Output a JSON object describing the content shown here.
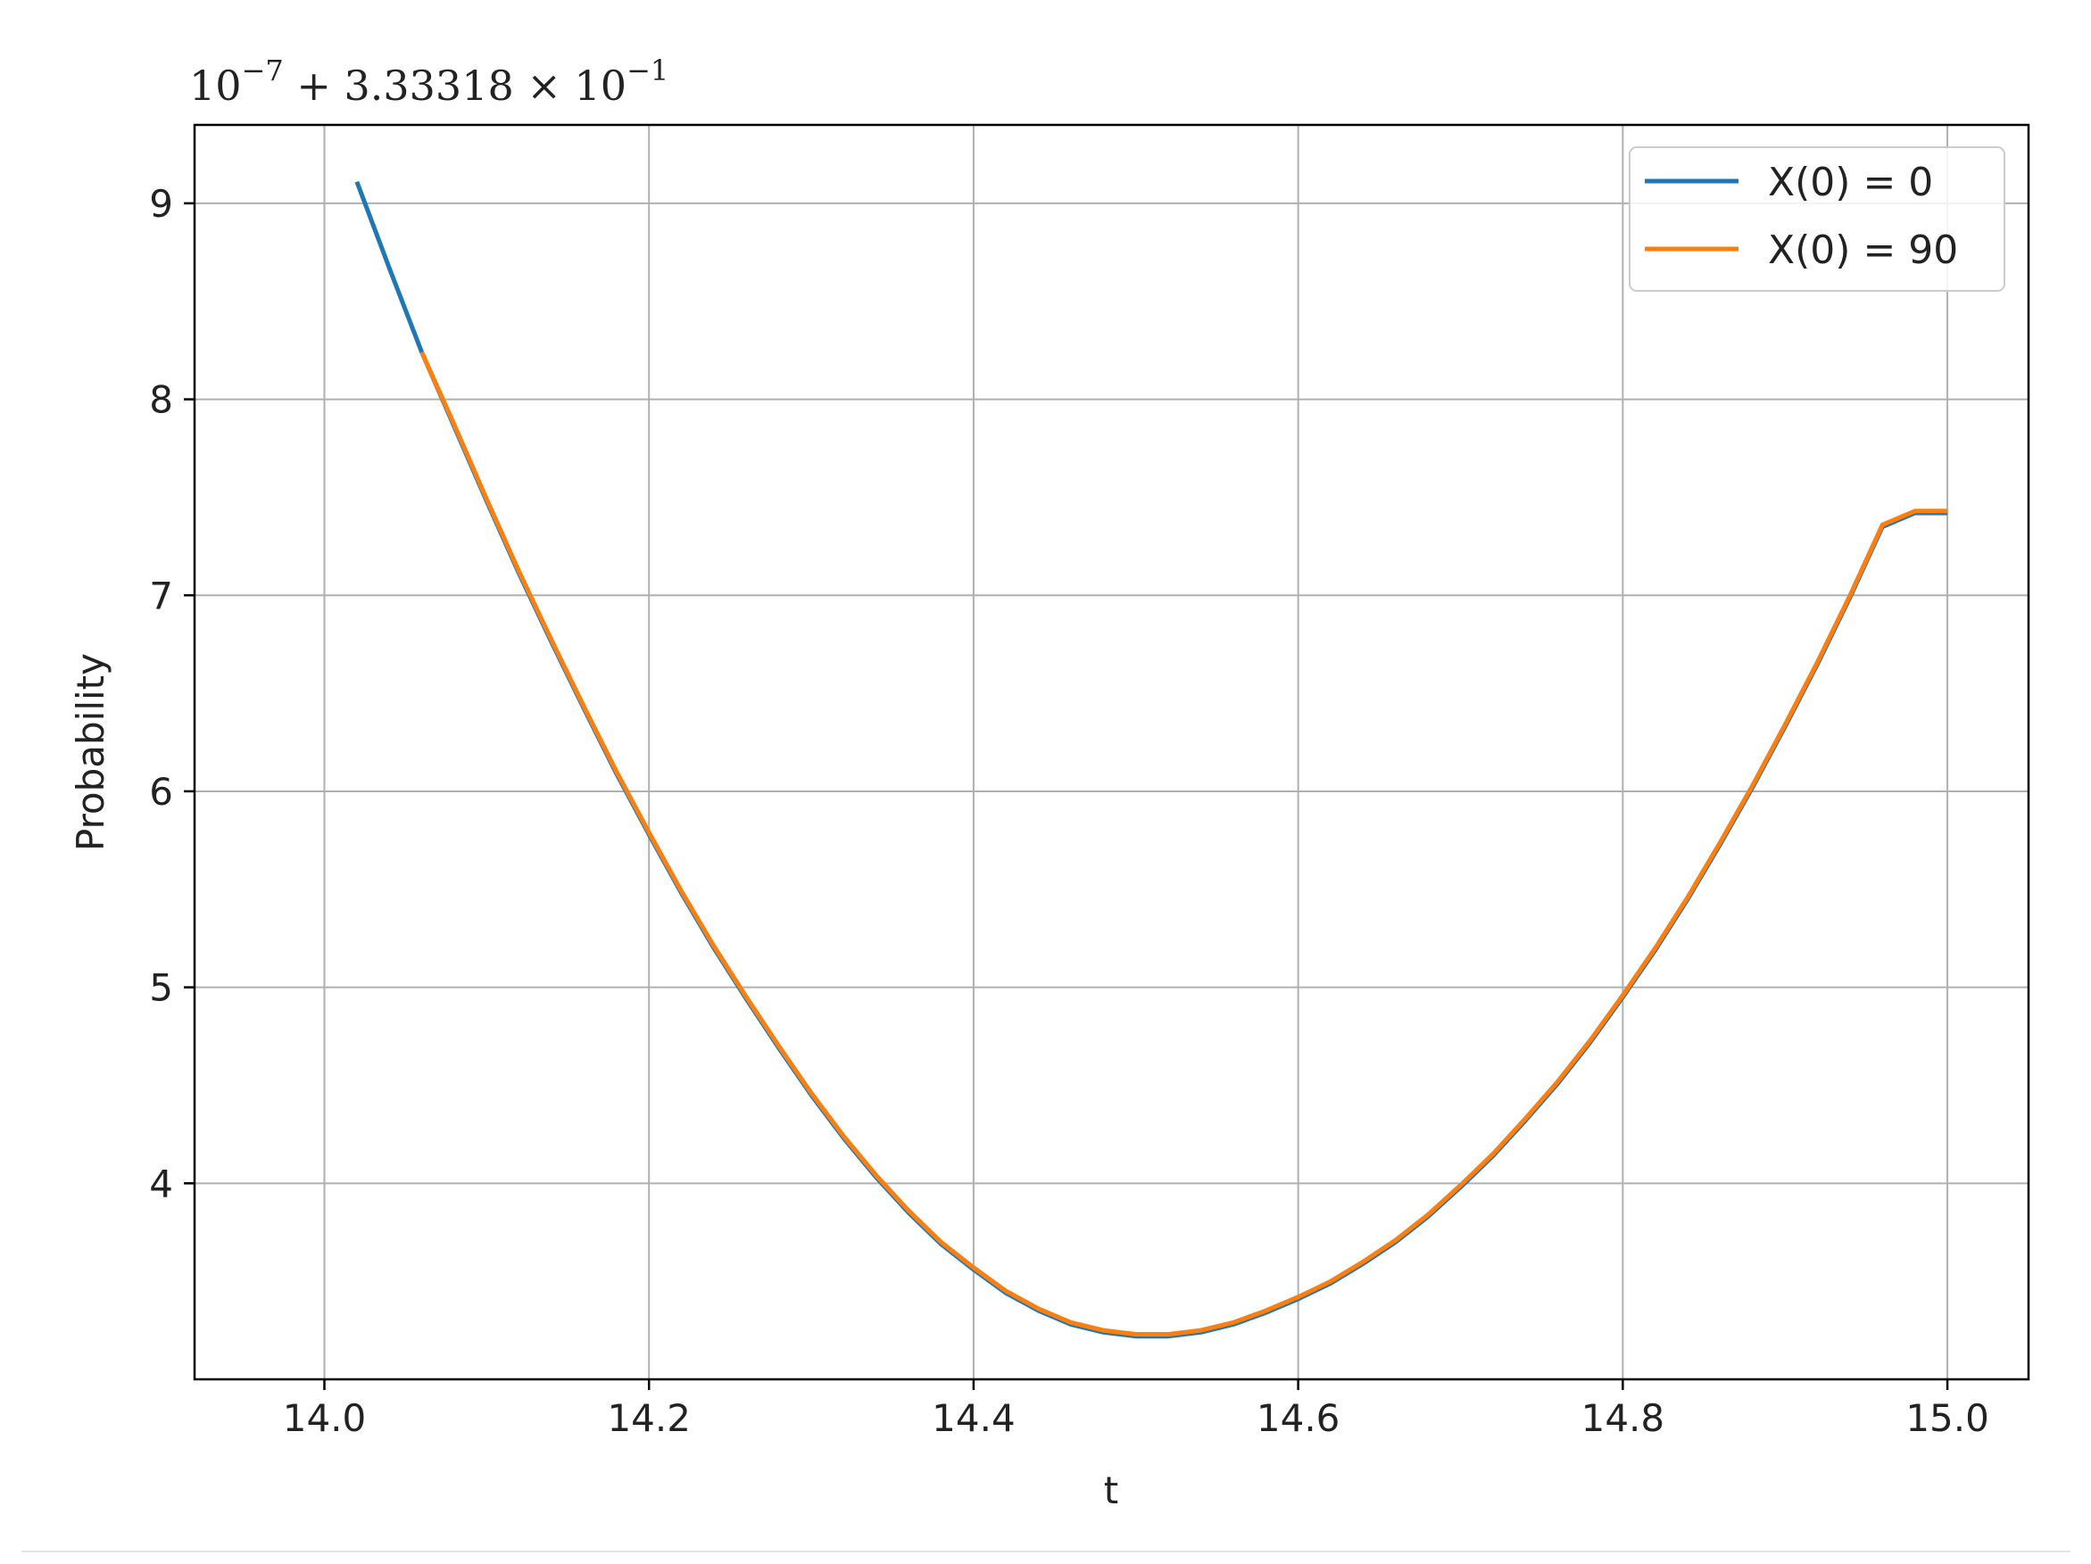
{
  "chart_data": {
    "type": "line",
    "title": "",
    "xlabel": "t",
    "ylabel": "Probability",
    "offset_text": {
      "base": "10",
      "exp1": "−7",
      "middle": " + 3.33318 × ",
      "base2": "10",
      "exp2": "−1"
    },
    "xlim": [
      13.92,
      15.05
    ],
    "ylim": [
      3.0,
      9.4
    ],
    "xticks": [
      14.0,
      14.2,
      14.4,
      14.6,
      14.8,
      15.0
    ],
    "xtick_labels": [
      "14.0",
      "14.2",
      "14.4",
      "14.6",
      "14.8",
      "15.0"
    ],
    "yticks": [
      4,
      5,
      6,
      7,
      8,
      9
    ],
    "ytick_labels": [
      "4",
      "5",
      "6",
      "7",
      "8",
      "9"
    ],
    "grid": true,
    "legend_position": "top-right",
    "series": [
      {
        "name": "X(0) = 0",
        "color": "#1f77b4",
        "x": [
          14.02,
          14.04,
          14.06,
          14.08,
          14.1,
          14.12,
          14.14,
          14.16,
          14.18,
          14.2,
          14.22,
          14.24,
          14.26,
          14.28,
          14.3,
          14.32,
          14.34,
          14.36,
          14.38,
          14.4,
          14.42,
          14.44,
          14.46,
          14.48,
          14.5,
          14.52,
          14.54,
          14.56,
          14.58,
          14.6,
          14.62,
          14.64,
          14.66,
          14.68,
          14.7,
          14.72,
          14.74,
          14.76,
          14.78,
          14.8,
          14.82,
          14.84,
          14.86,
          14.88,
          14.9,
          14.92,
          14.94,
          14.96,
          14.98,
          15.0
        ],
        "y": [
          9.11,
          8.67,
          8.24,
          7.86,
          7.48,
          7.11,
          6.76,
          6.42,
          6.09,
          5.78,
          5.48,
          5.2,
          4.94,
          4.69,
          4.45,
          4.23,
          4.03,
          3.85,
          3.69,
          3.56,
          3.44,
          3.35,
          3.28,
          3.24,
          3.22,
          3.22,
          3.24,
          3.28,
          3.34,
          3.41,
          3.49,
          3.59,
          3.7,
          3.83,
          3.98,
          4.14,
          4.32,
          4.51,
          4.72,
          4.95,
          5.19,
          5.45,
          5.73,
          6.02,
          6.33,
          6.65,
          6.99,
          7.35,
          7.42,
          7.42
        ]
      },
      {
        "name": "X(0) = 90",
        "color": "#ff7f0e",
        "x": [
          14.06,
          14.08,
          14.1,
          14.12,
          14.14,
          14.16,
          14.18,
          14.2,
          14.22,
          14.24,
          14.26,
          14.28,
          14.3,
          14.32,
          14.34,
          14.36,
          14.38,
          14.4,
          14.42,
          14.44,
          14.46,
          14.48,
          14.5,
          14.52,
          14.54,
          14.56,
          14.58,
          14.6,
          14.62,
          14.64,
          14.66,
          14.68,
          14.7,
          14.72,
          14.74,
          14.76,
          14.78,
          14.8,
          14.82,
          14.84,
          14.86,
          14.88,
          14.9,
          14.92,
          14.94,
          14.96,
          14.98,
          15.0
        ],
        "y": [
          8.24,
          7.87,
          7.49,
          7.12,
          6.77,
          6.43,
          6.1,
          5.79,
          5.49,
          5.21,
          4.95,
          4.7,
          4.46,
          4.24,
          4.04,
          3.86,
          3.7,
          3.57,
          3.45,
          3.36,
          3.29,
          3.25,
          3.23,
          3.23,
          3.25,
          3.29,
          3.35,
          3.42,
          3.5,
          3.6,
          3.71,
          3.84,
          3.99,
          4.15,
          4.33,
          4.52,
          4.73,
          4.96,
          5.2,
          5.46,
          5.74,
          6.03,
          6.34,
          6.66,
          7.0,
          7.36,
          7.43,
          7.43
        ]
      }
    ]
  }
}
